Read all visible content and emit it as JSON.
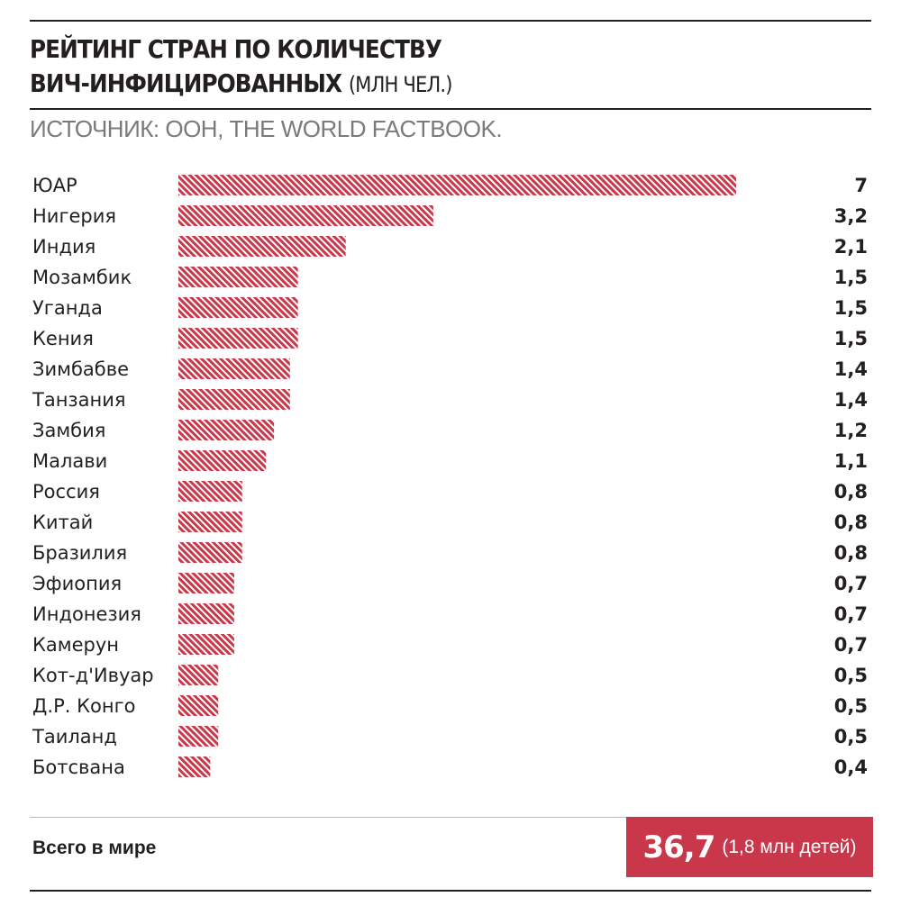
{
  "header": {
    "title_main_line1": "РЕЙТИНГ СТРАН ПО КОЛИЧЕСТВУ",
    "title_main_line2": "ВИЧ-ИНФИЦИРОВАННЫХ",
    "title_unit": "(МЛН ЧЕЛ.)",
    "source": "ИСТОЧНИК: ООН, THE WORLD FACTBOOK."
  },
  "chart_data": {
    "type": "bar",
    "orientation": "horizontal",
    "title": "РЕЙТИНГ СТРАН ПО КОЛИЧЕСТВУ ВИЧ-ИНФИЦИРОВАННЫХ (МЛН ЧЕЛ.)",
    "categories": [
      "ЮАР",
      "Нигерия",
      "Индия",
      "Мозамбик",
      "Уганда",
      "Кения",
      "Зимбабве",
      "Танзания",
      "Замбия",
      "Малави",
      "Россия",
      "Китай",
      "Бразилия",
      "Эфиопия",
      "Индонезия",
      "Камерун",
      "Кот-д'Ивуар",
      "Д.Р. Конго",
      "Таиланд",
      "Ботсвана"
    ],
    "values": [
      7,
      3.2,
      2.1,
      1.5,
      1.5,
      1.5,
      1.4,
      1.4,
      1.2,
      1.1,
      0.8,
      0.8,
      0.8,
      0.7,
      0.7,
      0.7,
      0.5,
      0.5,
      0.5,
      0.4
    ],
    "value_labels": [
      "7",
      "3,2",
      "2,1",
      "1,5",
      "1,5",
      "1,5",
      "1,4",
      "1,4",
      "1,2",
      "1,1",
      "0,8",
      "0,8",
      "0,8",
      "0,7",
      "0,7",
      "0,7",
      "0,5",
      "0,5",
      "0,5",
      "0,4"
    ],
    "bar_color": "#c8384a",
    "bar_fill": "diagonal-hatch",
    "xlim": [
      0,
      7
    ],
    "grid": false,
    "legend": "none"
  },
  "footer": {
    "total_label": "Всего в мире",
    "total_value": "36,7",
    "total_note": "(1,8 млн детей)",
    "accent_color": "#c8384a"
  }
}
